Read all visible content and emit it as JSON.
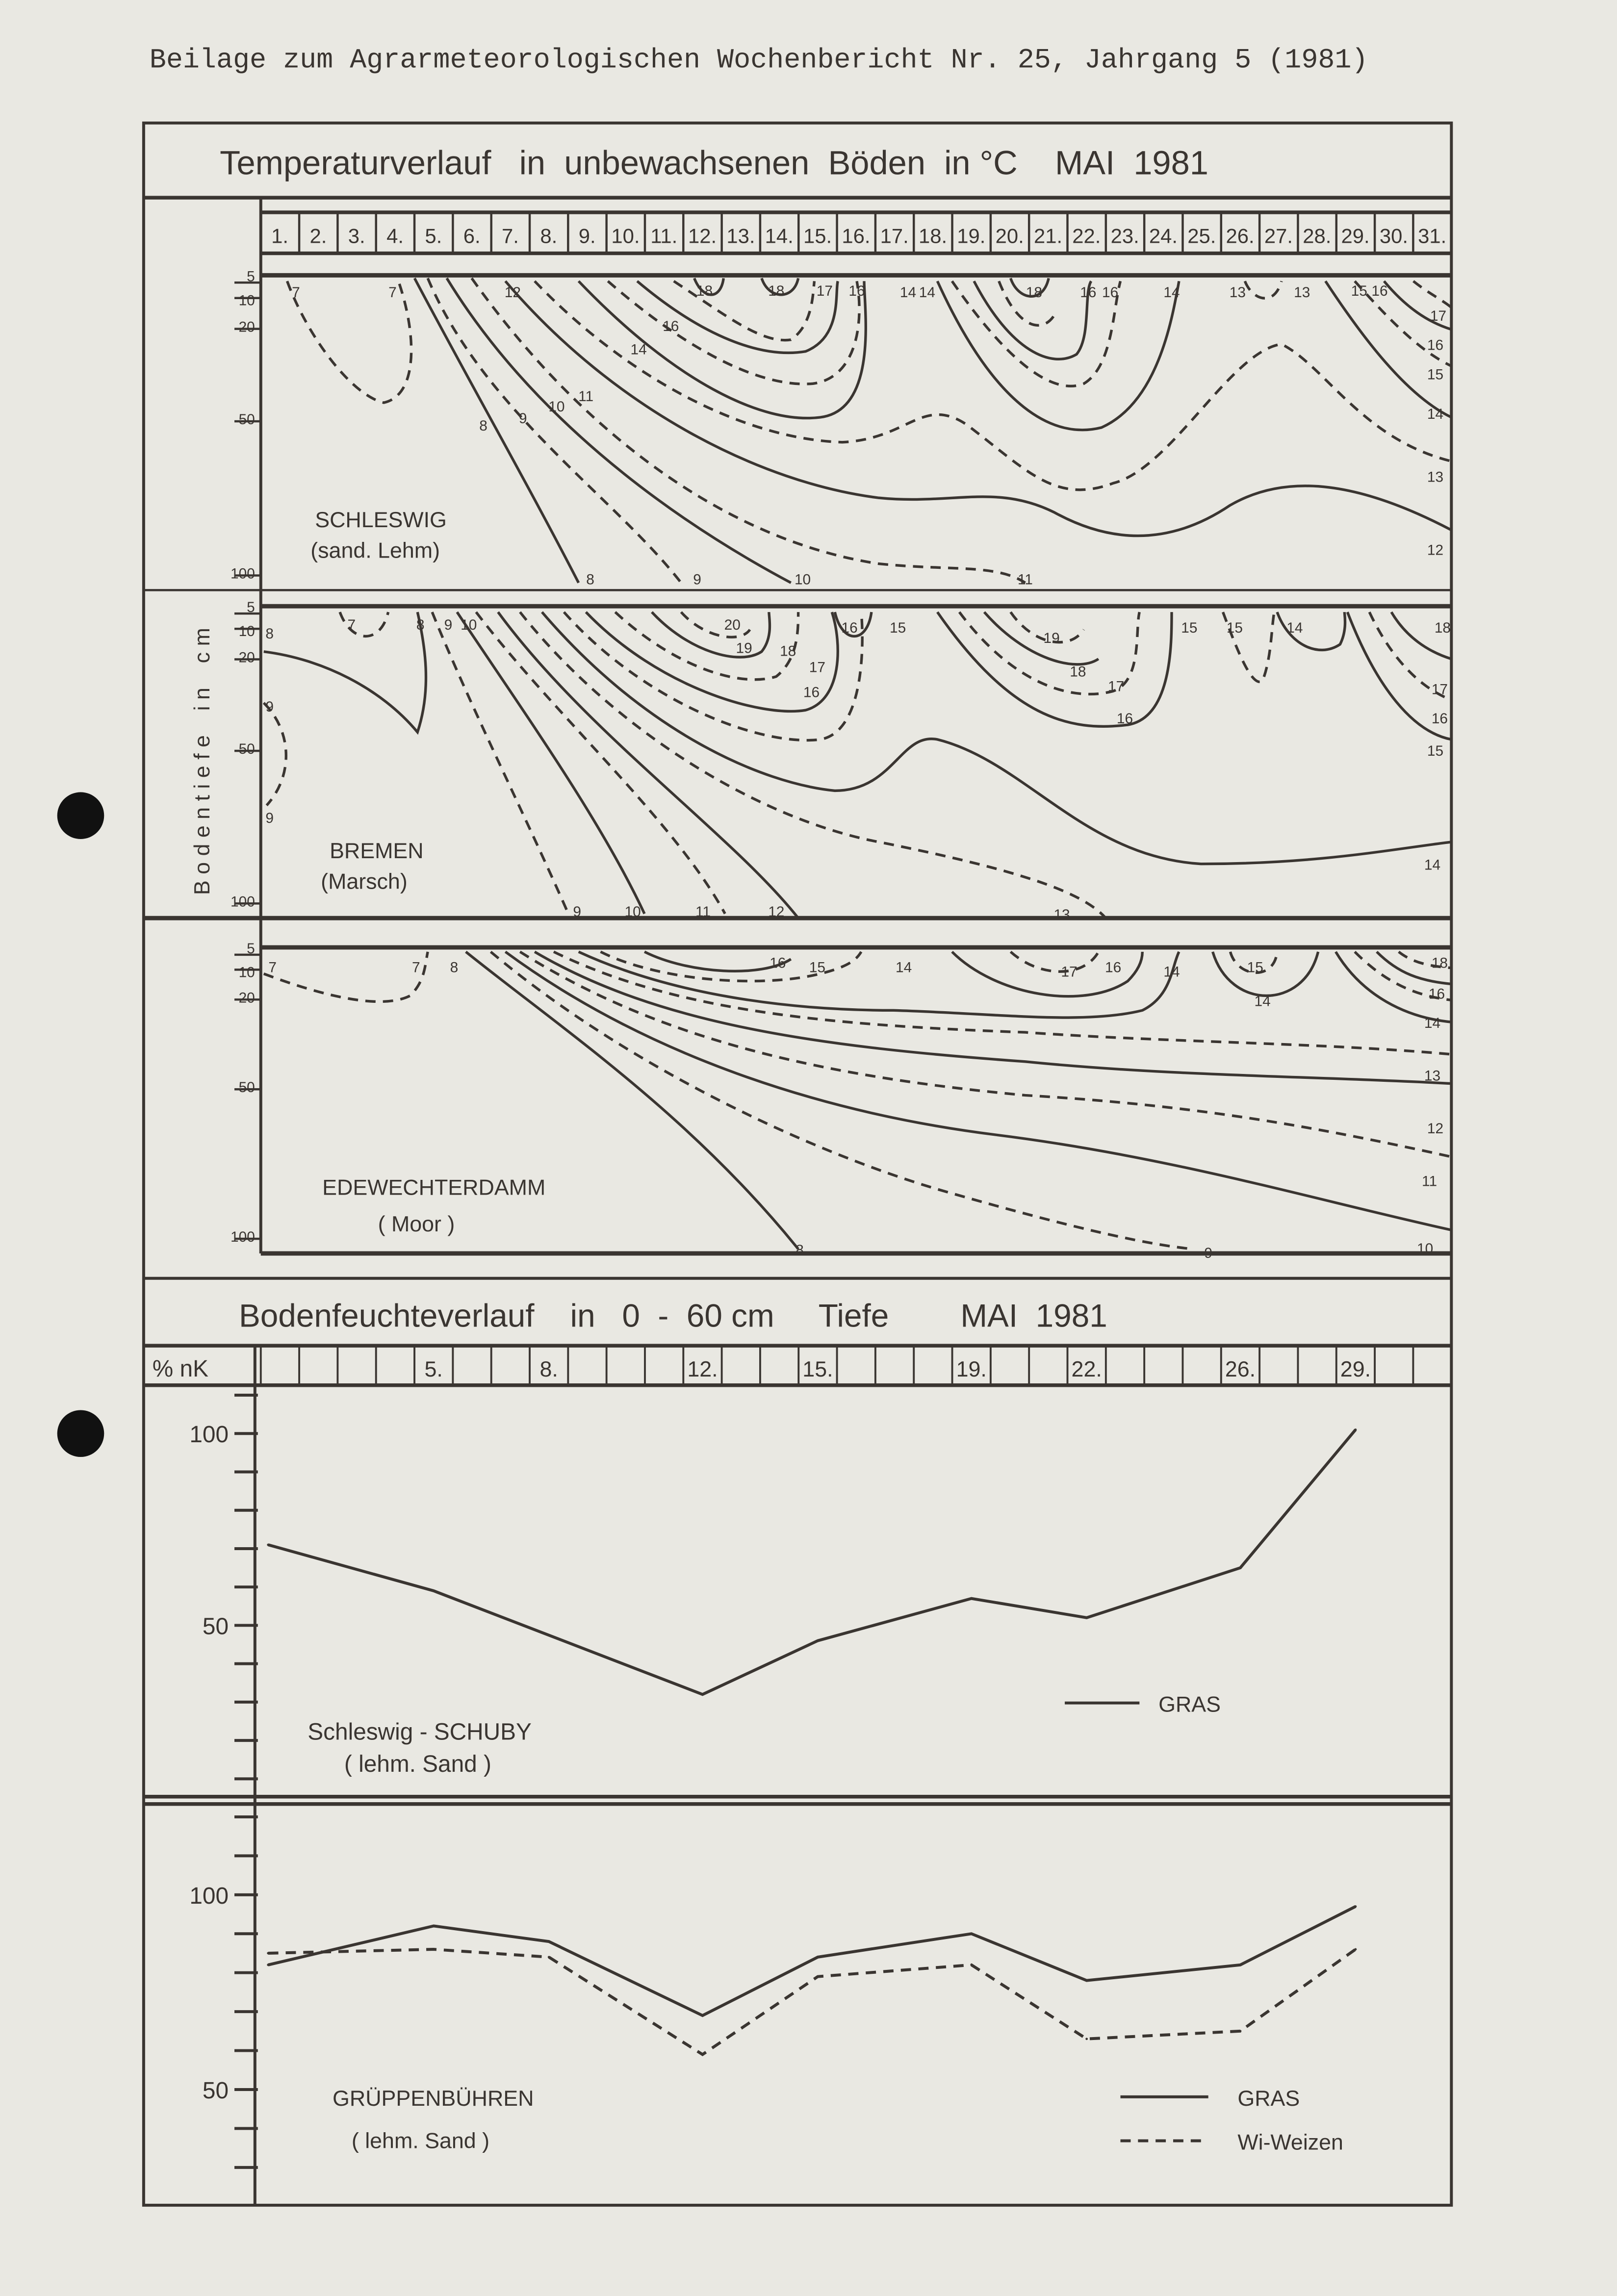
{
  "header": {
    "text": "Beilage zum Agrarmeteorologischen Wochenbericht Nr. 25, Jahrgang 5 (1981)"
  },
  "temperature": {
    "title": "Temperaturverlauf   in  unbewachsenen  Böden  in °C    MAI  1981",
    "days": [
      "1.",
      "2.",
      "3.",
      "4.",
      "5.",
      "6.",
      "7.",
      "8.",
      "9.",
      "10.",
      "11.",
      "12.",
      "13.",
      "14.",
      "15.",
      "16.",
      "17.",
      "18.",
      "19.",
      "20.",
      "21.",
      "22.",
      "23.",
      "24.",
      "25.",
      "26.",
      "27.",
      "28.",
      "29.",
      "30.",
      "31."
    ],
    "y_axis_label": "B o d e n t i e f e    i n    c m",
    "depth_ticks": [
      "5",
      "10",
      "20",
      "50",
      "100"
    ],
    "panels": [
      {
        "station": "SCHLESWIG",
        "soil": "(sand. Lehm)",
        "contour_labels": [
          "7",
          "7",
          "12",
          "18",
          "18",
          "17",
          "16",
          "14",
          "14",
          "18",
          "16",
          "16",
          "14",
          "13",
          "13",
          "15",
          "16",
          "17",
          "16",
          "15",
          "14",
          "13",
          "12",
          "16",
          "14",
          "11",
          "10",
          "9",
          "8",
          "8",
          "9",
          "10",
          "11"
        ]
      },
      {
        "station": "BREMEN",
        "soil": "(Marsch)",
        "contour_labels": [
          "8",
          "7",
          "8",
          "9",
          "10",
          "20",
          "19",
          "18",
          "17",
          "16",
          "16",
          "15",
          "19",
          "18",
          "17",
          "16",
          "15",
          "15",
          "14",
          "18",
          "17",
          "16",
          "15",
          "14",
          "9",
          "9",
          "9",
          "10",
          "11",
          "12",
          "13"
        ]
      },
      {
        "station": "EDEWECHTERDAMM",
        "soil": "( Moor )",
        "contour_labels": [
          "7",
          "7",
          "8",
          "16",
          "15",
          "14",
          "17",
          "16",
          "14",
          "15",
          "14",
          "18",
          "16",
          "14",
          "13",
          "12",
          "11",
          "8",
          "9",
          "10"
        ]
      }
    ]
  },
  "moisture": {
    "title": "Bodenfeuchteverlauf    in   0  -  60 cm     Tiefe        MAI  1981",
    "unit_label": "% nK",
    "day_labels": {
      "5": "5.",
      "8": "8.",
      "12": "12.",
      "15": "15.",
      "19": "19.",
      "22": "22.",
      "26": "26.",
      "29": "29."
    }
  },
  "chart_data": [
    {
      "type": "line",
      "title": "Schleswig - SCHUBY",
      "subtitle": "( lehm. Sand )",
      "x": [
        1,
        5,
        12,
        15,
        19,
        22,
        26,
        29
      ],
      "series": [
        {
          "name": "GRAS",
          "style": "solid",
          "values": [
            71,
            59,
            32,
            46,
            57,
            52,
            65,
            101
          ]
        }
      ],
      "ylim": [
        10,
        110
      ],
      "y_tick_labels": [
        "100",
        "50"
      ],
      "y_tick_step": 10,
      "legend": "right"
    },
    {
      "type": "line",
      "title": "GRÜPPENBÜHREN",
      "subtitle": "( lehm. Sand )",
      "x": [
        1,
        5,
        8,
        12,
        15,
        19,
        22,
        26,
        29
      ],
      "series": [
        {
          "name": "GRAS",
          "style": "solid",
          "values": [
            82,
            92,
            88,
            69,
            84,
            90,
            78,
            82,
            97
          ]
        },
        {
          "name": "Wi-Weizen",
          "style": "dashed",
          "values": [
            85,
            86,
            84,
            59,
            79,
            82,
            63,
            65,
            86
          ]
        }
      ],
      "ylim": [
        30,
        120
      ],
      "y_tick_labels": [
        "100",
        "50"
      ],
      "y_tick_step": 10,
      "legend": "bottom-right"
    }
  ],
  "colors": {
    "paper": "#e9e8e2",
    "ink": "#3a3531"
  }
}
